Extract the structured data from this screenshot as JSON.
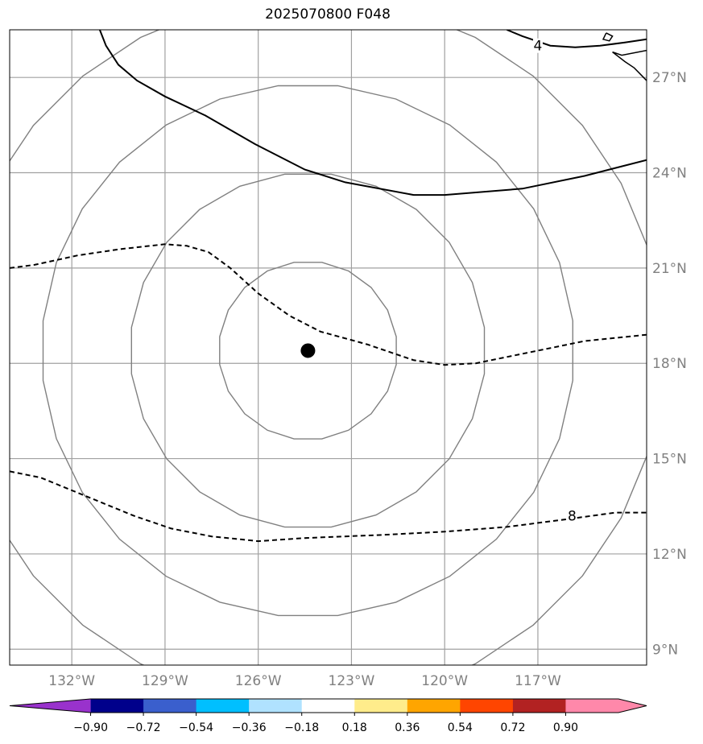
{
  "title": "2025070800 F048",
  "map": {
    "lon_range": [
      -134,
      -113.5
    ],
    "lat_range": [
      8.5,
      28.5
    ],
    "lon_ticks": [
      {
        "value": -132,
        "label": "132°W"
      },
      {
        "value": -129,
        "label": "129°W"
      },
      {
        "value": -126,
        "label": "126°W"
      },
      {
        "value": -123,
        "label": "123°W"
      },
      {
        "value": -120,
        "label": "120°W"
      },
      {
        "value": -117,
        "label": "117°W"
      }
    ],
    "lat_ticks": [
      {
        "value": 9,
        "label": "9°N"
      },
      {
        "value": 12,
        "label": "12°N"
      },
      {
        "value": 15,
        "label": "15°N"
      },
      {
        "value": 18,
        "label": "18°N"
      },
      {
        "value": 21,
        "label": "21°N"
      },
      {
        "value": 24,
        "label": "24°N"
      },
      {
        "value": 27,
        "label": "27°N"
      }
    ],
    "center": {
      "lon": -124.4,
      "lat": 18.4
    },
    "range_ring_count": 4,
    "colors": {
      "grid": "#a0a0a0",
      "rings": "#808080",
      "contour": "#000000",
      "center": "#000000"
    },
    "contour_labels": [
      {
        "text": "4",
        "lon": -117,
        "lat": 28.0
      },
      {
        "text": "8",
        "lon": -115.9,
        "lat": 13.2
      }
    ],
    "contours": [
      {
        "style": "solid",
        "points": [
          [
            -131.1,
            28.5
          ],
          [
            -130.9,
            28.0
          ],
          [
            -130.5,
            27.4
          ],
          [
            -129.9,
            26.9
          ],
          [
            -129.0,
            26.4
          ],
          [
            -127.7,
            25.8
          ],
          [
            -126.1,
            24.9
          ],
          [
            -124.5,
            24.1
          ],
          [
            -123.2,
            23.7
          ],
          [
            -121.0,
            23.3
          ],
          [
            -120.0,
            23.3
          ],
          [
            -117.5,
            23.5
          ],
          [
            -115.5,
            23.9
          ],
          [
            -113.5,
            24.4
          ]
        ]
      },
      {
        "style": "solid",
        "points": [
          [
            -118.0,
            28.5
          ],
          [
            -117.5,
            28.3
          ],
          [
            -116.6,
            28.0
          ],
          [
            -115.8,
            27.95
          ],
          [
            -115.0,
            28.0
          ],
          [
            -114.2,
            28.1
          ],
          [
            -113.5,
            28.2
          ]
        ]
      },
      {
        "style": "dashed",
        "points": [
          [
            -134.0,
            21.0
          ],
          [
            -133.2,
            21.1
          ],
          [
            -131.8,
            21.4
          ],
          [
            -130.4,
            21.6
          ],
          [
            -129.0,
            21.75
          ],
          [
            -128.3,
            21.7
          ],
          [
            -127.6,
            21.5
          ],
          [
            -126.9,
            21.0
          ],
          [
            -126.0,
            20.2
          ],
          [
            -125.0,
            19.5
          ],
          [
            -124.0,
            19.0
          ],
          [
            -122.5,
            18.6
          ],
          [
            -121.0,
            18.1
          ],
          [
            -120.0,
            17.95
          ],
          [
            -119.0,
            18.0
          ],
          [
            -117.5,
            18.3
          ],
          [
            -115.5,
            18.7
          ],
          [
            -113.5,
            18.9
          ]
        ]
      },
      {
        "style": "dashed",
        "points": [
          [
            -134.0,
            14.6
          ],
          [
            -133.0,
            14.4
          ],
          [
            -132.0,
            14.0
          ],
          [
            -131.0,
            13.6
          ],
          [
            -130.0,
            13.2
          ],
          [
            -128.8,
            12.8
          ],
          [
            -127.5,
            12.55
          ],
          [
            -126.0,
            12.4
          ],
          [
            -124.5,
            12.5
          ],
          [
            -122.0,
            12.6
          ],
          [
            -120.0,
            12.7
          ],
          [
            -118.0,
            12.85
          ],
          [
            -116.0,
            13.1
          ],
          [
            -114.5,
            13.3
          ],
          [
            -113.5,
            13.3
          ]
        ]
      }
    ],
    "coastline": [
      {
        "points": [
          [
            -113.5,
            27.85
          ],
          [
            -114.3,
            27.7
          ],
          [
            -114.6,
            27.8
          ],
          [
            -114.2,
            27.5
          ],
          [
            -113.9,
            27.3
          ],
          [
            -113.7,
            27.1
          ],
          [
            -113.5,
            26.9
          ]
        ]
      },
      {
        "points": [
          [
            -114.8,
            28.4
          ],
          [
            -114.6,
            28.3
          ],
          [
            -114.7,
            28.15
          ],
          [
            -114.9,
            28.2
          ],
          [
            -114.8,
            28.4
          ]
        ]
      }
    ]
  },
  "colorbar": {
    "bounds": [
      -0.9,
      -0.72,
      -0.54,
      -0.36,
      -0.18,
      0.18,
      0.36,
      0.54,
      0.72,
      0.9
    ],
    "labels": [
      "−0.90",
      "−0.72",
      "−0.54",
      "−0.36",
      "−0.18",
      "0.18",
      "0.36",
      "0.54",
      "0.72",
      "0.90"
    ],
    "under_color": "#9932cc",
    "over_color": "#ff88aa",
    "colors": [
      "#00008b",
      "#3a5fcd",
      "#00bfff",
      "#b0e2ff",
      "#ffffff",
      "#ffec8b",
      "#ffa500",
      "#ff4500",
      "#b22222"
    ]
  }
}
